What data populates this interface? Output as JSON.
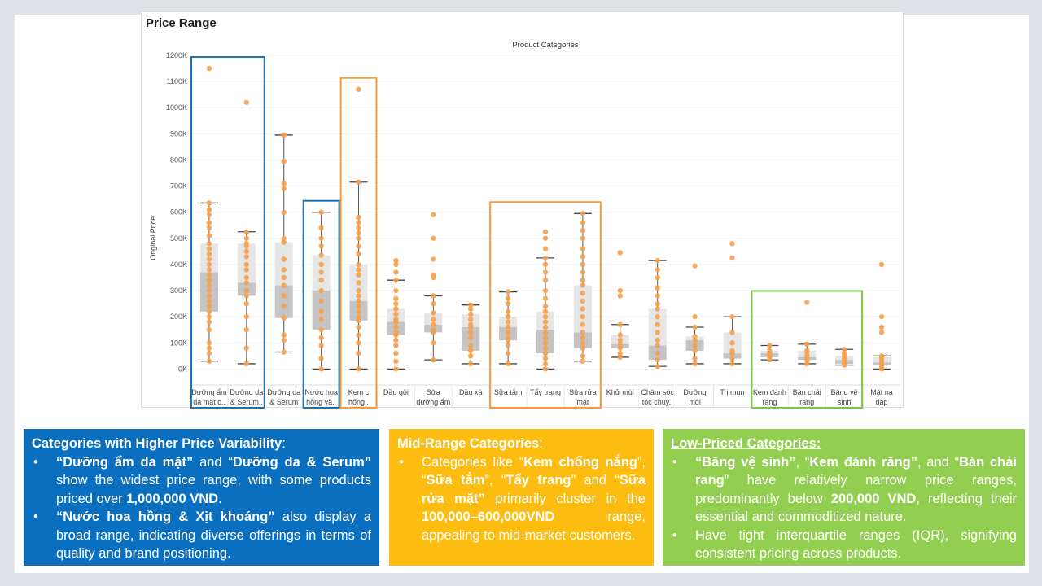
{
  "chart_data": {
    "type": "boxplot",
    "title": "Price Range",
    "column_header": "Product Categories",
    "ylabel": "Original Price",
    "ylim": [
      -30000,
      1200000
    ],
    "yticks": [
      0,
      100000,
      200000,
      300000,
      400000,
      500000,
      600000,
      700000,
      800000,
      900000,
      1000000,
      1100000,
      1200000
    ],
    "ytick_labels": [
      "0K",
      "100K",
      "200K",
      "300K",
      "400K",
      "500K",
      "600K",
      "700K",
      "800K",
      "900K",
      "1000K",
      "1100K",
      "1200K"
    ],
    "categories": [
      {
        "label": [
          "Dưỡng ẩm",
          "da mặt c.."
        ],
        "min": 30000,
        "q1": 220000,
        "median": 370000,
        "q3": 480000,
        "max": 635000,
        "points": [
          1150000,
          635000,
          610000,
          590000,
          560000,
          540000,
          510000,
          480000,
          460000,
          440000,
          420000,
          400000,
          380000,
          360000,
          340000,
          320000,
          300000,
          280000,
          260000,
          240000,
          220000,
          200000,
          180000,
          150000,
          100000,
          80000,
          60000,
          30000
        ]
      },
      {
        "label": [
          "Dưỡng da",
          "& Serum.."
        ],
        "min": 20000,
        "q1": 280000,
        "median": 330000,
        "q3": 480000,
        "max": 525000,
        "points": [
          1020000,
          525000,
          500000,
          480000,
          470000,
          450000,
          430000,
          400000,
          380000,
          350000,
          330000,
          300000,
          280000,
          250000,
          200000,
          150000,
          80000,
          20000
        ]
      },
      {
        "label": [
          "Dưỡng da",
          "& Serum"
        ],
        "min": 65000,
        "q1": 195000,
        "median": 320000,
        "q3": 485000,
        "max": 895000,
        "points": [
          895000,
          795000,
          710000,
          690000,
          600000,
          500000,
          485000,
          420000,
          380000,
          350000,
          320000,
          280000,
          240000,
          195000,
          130000,
          110000,
          65000
        ]
      },
      {
        "label": [
          "Nước hoa",
          "hồng và.."
        ],
        "min": 0,
        "q1": 150000,
        "median": 300000,
        "q3": 435000,
        "max": 600000,
        "points": [
          600000,
          540000,
          500000,
          470000,
          435000,
          400000,
          370000,
          340000,
          300000,
          260000,
          220000,
          190000,
          150000,
          120000,
          90000,
          40000,
          0
        ]
      },
      {
        "label": [
          "Kem c",
          "hống.."
        ],
        "min": 0,
        "q1": 185000,
        "median": 260000,
        "q3": 400000,
        "max": 715000,
        "points": [
          1070000,
          715000,
          580000,
          560000,
          540000,
          520000,
          500000,
          470000,
          440000,
          400000,
          380000,
          360000,
          330000,
          300000,
          280000,
          260000,
          240000,
          220000,
          200000,
          185000,
          160000,
          130000,
          100000,
          60000,
          0
        ]
      },
      {
        "label": [
          "Dầu gội"
        ],
        "min": 0,
        "q1": 130000,
        "median": 180000,
        "q3": 230000,
        "max": 340000,
        "points": [
          415000,
          400000,
          370000,
          340000,
          300000,
          270000,
          250000,
          230000,
          210000,
          190000,
          180000,
          160000,
          140000,
          130000,
          110000,
          90000,
          60000,
          30000,
          0
        ]
      },
      {
        "label": [
          "Sữa",
          "dưỡng ẩm"
        ],
        "min": 35000,
        "q1": 140000,
        "median": 170000,
        "q3": 215000,
        "max": 280000,
        "points": [
          590000,
          500000,
          420000,
          360000,
          350000,
          280000,
          250000,
          215000,
          190000,
          170000,
          150000,
          140000,
          100000,
          35000
        ]
      },
      {
        "label": [
          "Dầu xả"
        ],
        "min": 20000,
        "q1": 70000,
        "median": 160000,
        "q3": 210000,
        "max": 245000,
        "points": [
          245000,
          230000,
          210000,
          190000,
          170000,
          160000,
          140000,
          120000,
          90000,
          70000,
          50000,
          20000
        ]
      },
      {
        "label": [
          "Sữa tắm"
        ],
        "min": 20000,
        "q1": 110000,
        "median": 160000,
        "q3": 200000,
        "max": 295000,
        "points": [
          295000,
          270000,
          250000,
          220000,
          200000,
          180000,
          160000,
          140000,
          120000,
          110000,
          90000,
          60000,
          20000
        ]
      },
      {
        "label": [
          "Tẩy trang"
        ],
        "min": 0,
        "q1": 60000,
        "median": 150000,
        "q3": 220000,
        "max": 425000,
        "points": [
          525000,
          500000,
          460000,
          425000,
          400000,
          370000,
          340000,
          300000,
          270000,
          240000,
          220000,
          200000,
          180000,
          160000,
          140000,
          120000,
          100000,
          80000,
          60000,
          40000,
          20000,
          0
        ]
      },
      {
        "label": [
          "Sữa rửa",
          "mặt"
        ],
        "min": 30000,
        "q1": 80000,
        "median": 140000,
        "q3": 320000,
        "max": 595000,
        "points": [
          595000,
          560000,
          530000,
          500000,
          460000,
          430000,
          400000,
          370000,
          340000,
          320000,
          290000,
          260000,
          230000,
          200000,
          170000,
          140000,
          120000,
          100000,
          80000,
          50000,
          30000
        ]
      },
      {
        "label": [
          "Khử mùi"
        ],
        "min": 45000,
        "q1": 80000,
        "median": 95000,
        "q3": 130000,
        "max": 170000,
        "points": [
          445000,
          300000,
          280000,
          170000,
          130000,
          110000,
          95000,
          80000,
          60000,
          45000
        ]
      },
      {
        "label": [
          "Chăm sóc",
          "tóc chuy.."
        ],
        "min": 10000,
        "q1": 35000,
        "median": 90000,
        "q3": 230000,
        "max": 415000,
        "points": [
          415000,
          380000,
          350000,
          310000,
          280000,
          250000,
          230000,
          200000,
          170000,
          140000,
          110000,
          90000,
          60000,
          35000,
          10000
        ]
      },
      {
        "label": [
          "Dưỡng",
          "môi"
        ],
        "min": 20000,
        "q1": 70000,
        "median": 110000,
        "q3": 125000,
        "max": 160000,
        "points": [
          395000,
          200000,
          160000,
          125000,
          110000,
          90000,
          70000,
          40000,
          20000
        ]
      },
      {
        "label": [
          "Trị mụn"
        ],
        "min": 20000,
        "q1": 40000,
        "median": 60000,
        "q3": 140000,
        "max": 200000,
        "points": [
          480000,
          425000,
          200000,
          140000,
          100000,
          70000,
          60000,
          40000,
          20000
        ]
      },
      {
        "label": [
          "Kem đánh",
          "răng"
        ],
        "min": 35000,
        "q1": 45000,
        "median": 60000,
        "q3": 70000,
        "max": 90000,
        "points": [
          90000,
          70000,
          60000,
          50000,
          45000,
          35000
        ]
      },
      {
        "label": [
          "Bàn chải",
          "răng"
        ],
        "min": 20000,
        "q1": 35000,
        "median": 45000,
        "q3": 70000,
        "max": 95000,
        "points": [
          255000,
          95000,
          70000,
          55000,
          45000,
          35000,
          20000
        ]
      },
      {
        "label": [
          "Băng vệ",
          "sinh"
        ],
        "min": 15000,
        "q1": 20000,
        "median": 35000,
        "q3": 50000,
        "max": 75000,
        "points": [
          75000,
          60000,
          50000,
          40000,
          35000,
          25000,
          20000,
          15000
        ]
      },
      {
        "label": [
          "Mặt nạ",
          "đắp"
        ],
        "min": 0,
        "q1": 15000,
        "median": 25000,
        "q3": 45000,
        "max": 50000,
        "points": [
          400000,
          200000,
          160000,
          140000,
          50000,
          45000,
          35000,
          25000,
          15000,
          5000,
          0
        ]
      }
    ],
    "highlight_groups": [
      {
        "color": "#1f6fb3",
        "categories": [
          0,
          1
        ]
      },
      {
        "color": "#1f6fb3",
        "categories": [
          3
        ]
      },
      {
        "color": "#f59a34",
        "categories": [
          4
        ]
      },
      {
        "color": "#f59a34",
        "categories": [
          8,
          9,
          10
        ]
      },
      {
        "color": "#7fc24a",
        "categories": [
          15,
          16,
          17
        ]
      }
    ],
    "point_color": "#f4a150",
    "box_upper_color": "#e6e6e6",
    "box_lower_color": "#c4c4c4"
  },
  "panels": {
    "blue": {
      "color": "#0b6fbf",
      "heading": "Categories with Higher Price Variability",
      "heading_suffix": ":",
      "bullets": [
        [
          {
            "t": "“Dưỡng ẩm da mặt”",
            "b": true
          },
          {
            "t": " and “",
            "b": false
          },
          {
            "t": "Dưỡng da & Serum”",
            "b": true
          },
          {
            "t": " show the widest price range, with some products priced over ",
            "b": false
          },
          {
            "t": "1,000,000 VND",
            "b": true
          },
          {
            "t": ".",
            "b": false
          }
        ],
        [
          {
            "t": "“Nước hoa hồng & Xịt khoáng”",
            "b": true
          },
          {
            "t": " also display a broad range, indicating diverse offerings in terms of quality and brand positioning.",
            "b": false
          }
        ]
      ]
    },
    "yellow": {
      "color": "#fdbd10",
      "heading": "Mid-Range Categories",
      "heading_suffix": ":",
      "bullets": [
        [
          {
            "t": "Categories like “",
            "b": false
          },
          {
            "t": "Kem chống nắng",
            "b": true
          },
          {
            "t": "”, “",
            "b": false
          },
          {
            "t": "Sữa tắm",
            "b": true
          },
          {
            "t": "”, “",
            "b": false
          },
          {
            "t": "Tẩy trang",
            "b": true
          },
          {
            "t": "” and “",
            "b": false
          },
          {
            "t": "Sữa rửa mặt”",
            "b": true
          },
          {
            "t": " primarily cluster in the ",
            "b": false
          },
          {
            "t": "100,000–600,000VND",
            "b": true
          },
          {
            "t": " range, appealing to mid-market customers.",
            "b": false
          }
        ]
      ]
    },
    "green": {
      "color": "#92cf50",
      "heading": "Low-Priced Categories:",
      "heading_suffix": "",
      "bullets": [
        [
          {
            "t": "“Băng vệ sinh”",
            "b": true
          },
          {
            "t": ", “",
            "b": false
          },
          {
            "t": "Kem đánh răng”",
            "b": true
          },
          {
            "t": ", and “",
            "b": false
          },
          {
            "t": "Bàn chải rang",
            "b": true
          },
          {
            "t": "” have relatively narrow price ranges, predominantly below ",
            "b": false
          },
          {
            "t": "200,000 VND",
            "b": true
          },
          {
            "t": ", reflecting their essential and commoditized nature.",
            "b": false
          }
        ],
        [
          {
            "t": "Have tight interquartile ranges (IQR), signifying consistent pricing across products.",
            "b": false
          }
        ]
      ]
    }
  }
}
